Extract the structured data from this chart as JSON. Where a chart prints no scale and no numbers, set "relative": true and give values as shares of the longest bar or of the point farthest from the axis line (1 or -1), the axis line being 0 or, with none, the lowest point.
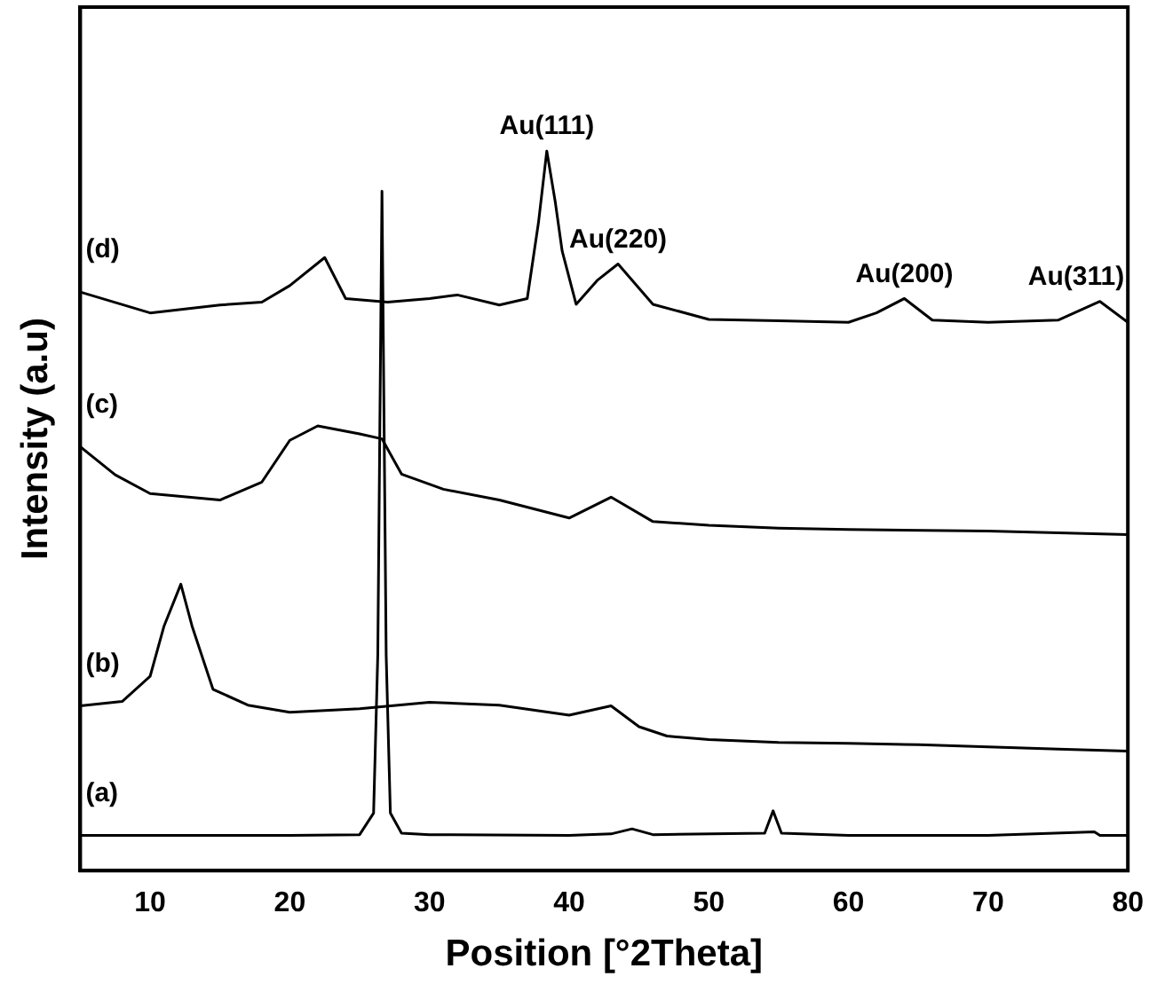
{
  "chart_data": {
    "type": "line",
    "xlabel": "Position [°2Theta]",
    "ylabel": "Intensity (a.u)",
    "relative": true,
    "xlim": [
      5,
      80
    ],
    "xticks": [
      10,
      20,
      30,
      40,
      50,
      60,
      70,
      80
    ],
    "legend": false,
    "grid": false,
    "marker": "none",
    "line_style": "solid",
    "series": [
      {
        "name": "(a)",
        "color": "#000000",
        "x": [
          5,
          10,
          20,
          25,
          26,
          26.3,
          26.6,
          26.9,
          27.2,
          28,
          30,
          40,
          43,
          44.5,
          46,
          54,
          54.6,
          55.2,
          60,
          70,
          77.6,
          78,
          80
        ],
        "values": [
          0.049,
          0.049,
          0.049,
          0.05,
          0.08,
          0.3,
          0.944,
          0.3,
          0.08,
          0.052,
          0.05,
          0.049,
          0.051,
          0.058,
          0.05,
          0.052,
          0.083,
          0.052,
          0.049,
          0.049,
          0.054,
          0.049,
          0.049
        ]
      },
      {
        "name": "(b)",
        "color": "#000000",
        "x": [
          5,
          8,
          10,
          11,
          12.2,
          13,
          14.5,
          17,
          20,
          25,
          30,
          35,
          40,
          43,
          45,
          47,
          50,
          55,
          60,
          65,
          70,
          75,
          80
        ],
        "values": [
          0.229,
          0.235,
          0.27,
          0.34,
          0.398,
          0.34,
          0.252,
          0.23,
          0.22,
          0.225,
          0.234,
          0.23,
          0.216,
          0.229,
          0.2,
          0.187,
          0.182,
          0.178,
          0.177,
          0.175,
          0.172,
          0.169,
          0.166
        ]
      },
      {
        "name": "(c)",
        "color": "#000000",
        "x": [
          5,
          7.5,
          10,
          15,
          18,
          20,
          22,
          25,
          26.6,
          28,
          31,
          35,
          40,
          43,
          46,
          50,
          55,
          60,
          70,
          80
        ],
        "values": [
          0.589,
          0.55,
          0.524,
          0.515,
          0.54,
          0.598,
          0.618,
          0.607,
          0.6,
          0.551,
          0.53,
          0.515,
          0.49,
          0.519,
          0.485,
          0.48,
          0.476,
          0.474,
          0.472,
          0.467
        ]
      },
      {
        "name": "(d)",
        "color": "#000000",
        "x": [
          5,
          10,
          15,
          18,
          20,
          22.5,
          24,
          27,
          30,
          32,
          35,
          37,
          37.8,
          38.4,
          39,
          39.5,
          40.5,
          42,
          43.5,
          46,
          50,
          55,
          60,
          62,
          64,
          66,
          70,
          75,
          78,
          80
        ],
        "values": [
          0.804,
          0.775,
          0.786,
          0.79,
          0.813,
          0.852,
          0.795,
          0.79,
          0.795,
          0.8,
          0.786,
          0.795,
          0.9,
          1,
          0.93,
          0.861,
          0.787,
          0.82,
          0.843,
          0.787,
          0.766,
          0.764,
          0.762,
          0.775,
          0.795,
          0.765,
          0.762,
          0.765,
          0.791,
          0.762
        ]
      }
    ],
    "annotations": [
      {
        "text": "Au(111)",
        "x": 38.4,
        "y": 1
      },
      {
        "text": "Au(220)",
        "x": 43.5,
        "y": 0.843
      },
      {
        "text": "Au(200)",
        "x": 64,
        "y": 0.795
      },
      {
        "text": "Au(311)",
        "x": 78,
        "y": 0.791
      }
    ]
  }
}
